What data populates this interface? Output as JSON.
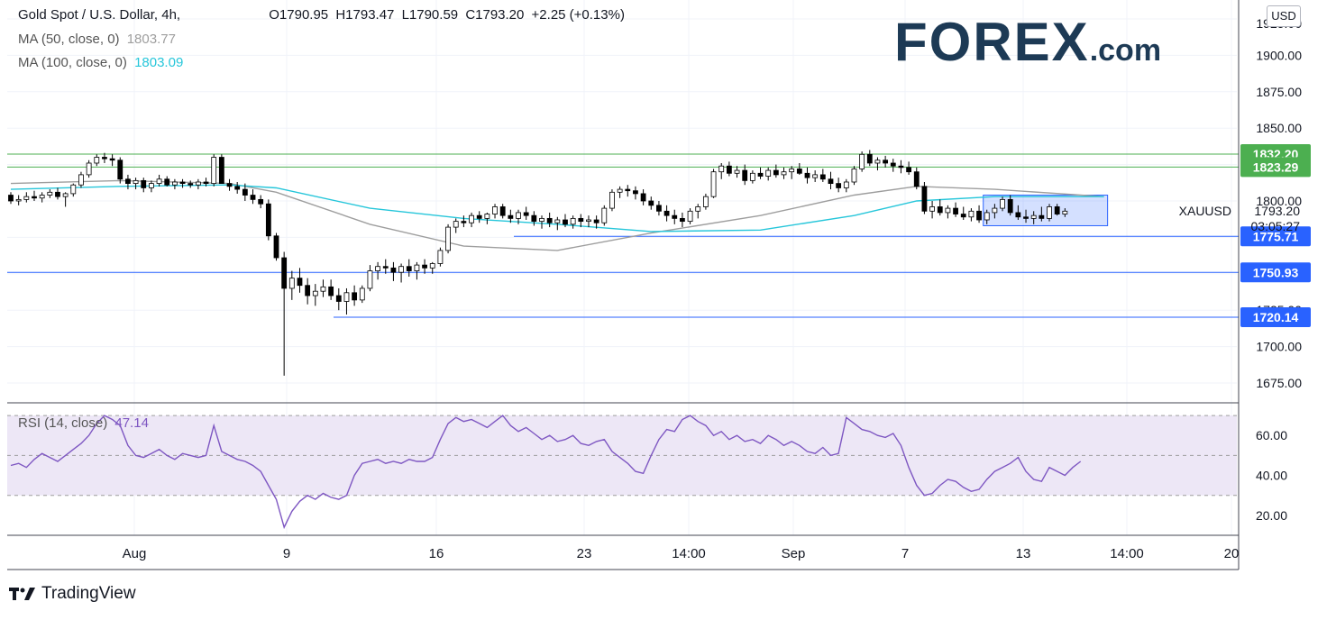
{
  "header": {
    "symbol": "Gold Spot / U.S. Dollar, 4h,",
    "open": "O1790.95",
    "high": "H1793.47",
    "low": "L1790.59",
    "close": "C1793.20",
    "change": "+2.25 (+0.13%)",
    "ma50_label": "MA (50, close, 0)",
    "ma50_value": "1803.77",
    "ma100_label": "MA (100, close, 0)",
    "ma100_value": "1803.09",
    "rsi_label": "RSI (14, close)",
    "rsi_value": "47.14"
  },
  "logo": {
    "main": "FOREX",
    "suffix": ".com"
  },
  "footer": {
    "brand": "TradingView"
  },
  "currency": "USD",
  "colors": {
    "ma50": "#9e9e9e",
    "ma100": "#26c6da",
    "rsi": "#7e57c2",
    "support_lines": "#2962ff",
    "resistance_lines": "#4caf50",
    "rectangle": "#2962ff",
    "rsi_band": "#ede7f6"
  },
  "chart_data": [
    {
      "type": "candlestick",
      "ylim": [
        1662,
        1938
      ],
      "price_ticks": [
        "1900.00",
        "1875.00",
        "1850.00",
        "1800.00",
        "1725.00",
        "1700.00",
        "1675.00"
      ],
      "top_partial_tick": "1925.00",
      "x_ticks": [
        "Aug",
        "9",
        "16",
        "23",
        "14:00",
        "Sep",
        "7",
        "13",
        "14:00",
        "20"
      ],
      "ohlc": [
        [
          1804,
          1806,
          1798,
          1800
        ],
        [
          1800,
          1804,
          1797,
          1801
        ],
        [
          1801,
          1806,
          1799,
          1803
        ],
        [
          1803,
          1807,
          1800,
          1802
        ],
        [
          1802,
          1806,
          1799,
          1804
        ],
        [
          1804,
          1808,
          1802,
          1806
        ],
        [
          1806,
          1809,
          1801,
          1803
        ],
        [
          1803,
          1806,
          1796,
          1805
        ],
        [
          1805,
          1812,
          1803,
          1811
        ],
        [
          1811,
          1820,
          1809,
          1818
        ],
        [
          1818,
          1828,
          1816,
          1826
        ],
        [
          1826,
          1832,
          1824,
          1830
        ],
        [
          1830,
          1833,
          1826,
          1829
        ],
        [
          1829,
          1832,
          1824,
          1828
        ],
        [
          1828,
          1830,
          1812,
          1815
        ],
        [
          1815,
          1818,
          1808,
          1812
        ],
        [
          1812,
          1816,
          1808,
          1814
        ],
        [
          1814,
          1816,
          1806,
          1809
        ],
        [
          1809,
          1814,
          1806,
          1812
        ],
        [
          1812,
          1818,
          1810,
          1815
        ],
        [
          1815,
          1817,
          1810,
          1811
        ],
        [
          1811,
          1815,
          1808,
          1813
        ],
        [
          1813,
          1815,
          1809,
          1812
        ],
        [
          1812,
          1814,
          1809,
          1811
        ],
        [
          1811,
          1815,
          1808,
          1813
        ],
        [
          1813,
          1816,
          1810,
          1812
        ],
        [
          1812,
          1832,
          1810,
          1830
        ],
        [
          1830,
          1832,
          1812,
          1812
        ],
        [
          1812,
          1815,
          1807,
          1810
        ],
        [
          1810,
          1813,
          1805,
          1808
        ],
        [
          1808,
          1812,
          1800,
          1804
        ],
        [
          1804,
          1808,
          1798,
          1801
        ],
        [
          1801,
          1804,
          1795,
          1798
        ],
        [
          1798,
          1801,
          1773,
          1776
        ],
        [
          1776,
          1778,
          1759,
          1761
        ],
        [
          1761,
          1765,
          1680,
          1740
        ],
        [
          1740,
          1752,
          1732,
          1747
        ],
        [
          1747,
          1754,
          1737,
          1742
        ],
        [
          1742,
          1747,
          1729,
          1735
        ],
        [
          1735,
          1743,
          1728,
          1738
        ],
        [
          1738,
          1746,
          1734,
          1741
        ],
        [
          1741,
          1746,
          1732,
          1735
        ],
        [
          1735,
          1740,
          1725,
          1731
        ],
        [
          1731,
          1740,
          1722,
          1737
        ],
        [
          1737,
          1742,
          1728,
          1732
        ],
        [
          1732,
          1742,
          1730,
          1740
        ],
        [
          1740,
          1756,
          1738,
          1752
        ],
        [
          1752,
          1758,
          1746,
          1755
        ],
        [
          1755,
          1760,
          1750,
          1754
        ],
        [
          1754,
          1758,
          1745,
          1751
        ],
        [
          1751,
          1757,
          1744,
          1755
        ],
        [
          1755,
          1760,
          1748,
          1752
        ],
        [
          1752,
          1758,
          1746,
          1756
        ],
        [
          1756,
          1760,
          1750,
          1754
        ],
        [
          1754,
          1758,
          1750,
          1757
        ],
        [
          1757,
          1768,
          1755,
          1766
        ],
        [
          1766,
          1784,
          1764,
          1782
        ],
        [
          1782,
          1788,
          1778,
          1786
        ],
        [
          1786,
          1790,
          1782,
          1785
        ],
        [
          1785,
          1792,
          1782,
          1790
        ],
        [
          1790,
          1793,
          1785,
          1788
        ],
        [
          1788,
          1792,
          1784,
          1791
        ],
        [
          1791,
          1798,
          1788,
          1796
        ],
        [
          1796,
          1798,
          1788,
          1790
        ],
        [
          1790,
          1794,
          1785,
          1788
        ],
        [
          1788,
          1794,
          1784,
          1792
        ],
        [
          1792,
          1796,
          1787,
          1790
        ],
        [
          1790,
          1793,
          1783,
          1786
        ],
        [
          1786,
          1790,
          1781,
          1788
        ],
        [
          1788,
          1792,
          1782,
          1785
        ],
        [
          1785,
          1789,
          1780,
          1787
        ],
        [
          1787,
          1791,
          1782,
          1784
        ],
        [
          1784,
          1790,
          1781,
          1788
        ],
        [
          1788,
          1791,
          1782,
          1786
        ],
        [
          1786,
          1790,
          1782,
          1787
        ],
        [
          1787,
          1790,
          1781,
          1785
        ],
        [
          1785,
          1797,
          1783,
          1795
        ],
        [
          1795,
          1808,
          1793,
          1806
        ],
        [
          1806,
          1810,
          1802,
          1808
        ],
        [
          1808,
          1811,
          1803,
          1807
        ],
        [
          1807,
          1810,
          1801,
          1805
        ],
        [
          1805,
          1808,
          1797,
          1800
        ],
        [
          1800,
          1803,
          1794,
          1797
        ],
        [
          1797,
          1800,
          1790,
          1793
        ],
        [
          1793,
          1797,
          1786,
          1790
        ],
        [
          1790,
          1794,
          1784,
          1788
        ],
        [
          1788,
          1792,
          1782,
          1786
        ],
        [
          1786,
          1795,
          1784,
          1793
        ],
        [
          1793,
          1798,
          1788,
          1796
        ],
        [
          1796,
          1805,
          1794,
          1803
        ],
        [
          1803,
          1822,
          1802,
          1820
        ],
        [
          1820,
          1826,
          1815,
          1824
        ],
        [
          1824,
          1827,
          1817,
          1819
        ],
        [
          1819,
          1824,
          1816,
          1821
        ],
        [
          1821,
          1825,
          1811,
          1814
        ],
        [
          1814,
          1821,
          1812,
          1819
        ],
        [
          1819,
          1823,
          1815,
          1817
        ],
        [
          1817,
          1823,
          1814,
          1821
        ],
        [
          1821,
          1825,
          1816,
          1818
        ],
        [
          1818,
          1823,
          1815,
          1820
        ],
        [
          1820,
          1824,
          1815,
          1822
        ],
        [
          1822,
          1826,
          1818,
          1819
        ],
        [
          1819,
          1823,
          1812,
          1816
        ],
        [
          1816,
          1821,
          1813,
          1818
        ],
        [
          1818,
          1822,
          1813,
          1815
        ],
        [
          1815,
          1820,
          1808,
          1812
        ],
        [
          1812,
          1816,
          1806,
          1809
        ],
        [
          1809,
          1815,
          1806,
          1813
        ],
        [
          1813,
          1824,
          1811,
          1822
        ],
        [
          1822,
          1834,
          1820,
          1832
        ],
        [
          1832,
          1835,
          1824,
          1826
        ],
        [
          1826,
          1830,
          1821,
          1828
        ],
        [
          1828,
          1831,
          1823,
          1826
        ],
        [
          1826,
          1829,
          1820,
          1824
        ],
        [
          1824,
          1828,
          1819,
          1823
        ],
        [
          1823,
          1827,
          1818,
          1820
        ],
        [
          1820,
          1823,
          1808,
          1810
        ],
        [
          1810,
          1813,
          1791,
          1793
        ],
        [
          1793,
          1800,
          1788,
          1796
        ],
        [
          1796,
          1801,
          1790,
          1792
        ],
        [
          1792,
          1797,
          1788,
          1795
        ],
        [
          1795,
          1799,
          1789,
          1791
        ],
        [
          1791,
          1796,
          1787,
          1789
        ],
        [
          1789,
          1795,
          1786,
          1793
        ],
        [
          1793,
          1797,
          1785,
          1787
        ],
        [
          1787,
          1794,
          1784,
          1792
        ],
        [
          1792,
          1798,
          1788,
          1795
        ],
        [
          1795,
          1803,
          1793,
          1801
        ],
        [
          1801,
          1804,
          1790,
          1792
        ],
        [
          1792,
          1797,
          1787,
          1789
        ],
        [
          1789,
          1794,
          1785,
          1788
        ],
        [
          1788,
          1793,
          1784,
          1790
        ],
        [
          1790,
          1796,
          1786,
          1788
        ],
        [
          1788,
          1798,
          1786,
          1796
        ],
        [
          1796,
          1798,
          1790,
          1791
        ],
        [
          1791,
          1795,
          1789,
          1793
        ]
      ],
      "moving_averages": [
        {
          "name": "MA (50, close, 0)",
          "values": [
            [
              0,
              1812
            ],
            [
              14,
              1814
            ],
            [
              28,
              1812
            ],
            [
              34,
              1806
            ],
            [
              46,
              1784
            ],
            [
              58,
              1769
            ],
            [
              70,
              1766
            ],
            [
              82,
              1778
            ],
            [
              96,
              1790
            ],
            [
              108,
              1804
            ],
            [
              116,
              1810
            ],
            [
              126,
              1808
            ],
            [
              140,
              1803
            ]
          ]
        },
        {
          "name": "MA (100, close, 0)",
          "values": [
            [
              0,
              1808
            ],
            [
              14,
              1810
            ],
            [
              28,
              1811
            ],
            [
              34,
              1809
            ],
            [
              46,
              1795
            ],
            [
              58,
              1788
            ],
            [
              70,
              1784
            ],
            [
              82,
              1779
            ],
            [
              96,
              1780
            ],
            [
              108,
              1790
            ],
            [
              116,
              1800
            ],
            [
              126,
              1803
            ],
            [
              140,
              1803
            ]
          ]
        }
      ],
      "horizontal_levels": [
        {
          "price": 1832.2,
          "label": "1832.20",
          "color": "#4caf50"
        },
        {
          "price": 1823.29,
          "label": "1823.29",
          "color": "#4caf50"
        },
        {
          "price": 1775.71,
          "label": "1775.71",
          "color": "#2962ff"
        },
        {
          "price": 1750.93,
          "label": "1750.93",
          "color": "#2962ff"
        },
        {
          "price": 1720.14,
          "label": "1720.14",
          "color": "#2962ff"
        }
      ],
      "range_box": {
        "from": 125,
        "to": 140,
        "top": 1804,
        "bottom": 1783
      },
      "last_price": {
        "label": "1793.20",
        "symbol": "XAUUSD",
        "countdown": "03:05:27"
      }
    },
    {
      "type": "line",
      "name": "RSI (14, close)",
      "ylim": [
        10,
        75
      ],
      "ticks": [
        "60.00",
        "40.00",
        "20.00"
      ],
      "band": [
        30,
        70
      ],
      "midline": 50,
      "values": [
        45,
        46,
        44,
        48,
        51,
        49,
        47,
        50,
        53,
        56,
        60,
        66,
        70,
        68,
        65,
        55,
        50,
        49,
        51,
        53,
        50,
        48,
        51,
        50,
        49,
        50,
        65,
        52,
        50,
        48,
        47,
        45,
        42,
        35,
        28,
        14,
        22,
        27,
        30,
        28,
        31,
        29,
        28,
        30,
        40,
        46,
        47,
        48,
        46,
        47,
        46,
        48,
        47,
        47,
        49,
        58,
        66,
        69,
        67,
        68,
        66,
        64,
        67,
        70,
        65,
        62,
        64,
        61,
        58,
        60,
        57,
        58,
        60,
        56,
        55,
        57,
        58,
        52,
        49,
        46,
        42,
        41,
        50,
        58,
        63,
        62,
        68,
        70,
        67,
        65,
        60,
        62,
        58,
        60,
        57,
        58,
        56,
        60,
        58,
        55,
        57,
        55,
        52,
        51,
        54,
        50,
        51,
        69,
        66,
        63,
        62,
        60,
        59,
        61,
        55,
        44,
        35,
        30,
        31,
        35,
        38,
        37,
        34,
        32,
        33,
        38,
        42,
        44,
        46,
        49,
        42,
        38,
        37,
        44,
        42,
        40,
        44,
        47
      ]
    }
  ]
}
